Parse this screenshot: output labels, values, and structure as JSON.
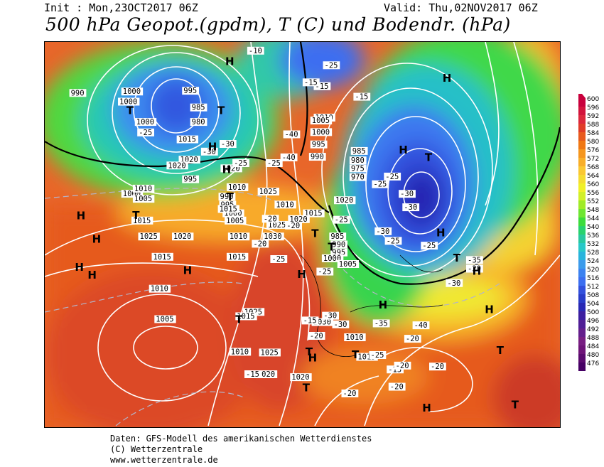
{
  "header": {
    "init": "Init : Mon,23OCT2017 06Z",
    "valid": "Valid: Thu,02NOV2017 06Z",
    "title": "500 hPa Geopot.(gpdm), T (C) und Bodendr. (hPa)"
  },
  "footer": {
    "line1": "Daten: GFS-Modell des amerikanischen Wetterdienstes",
    "line2": "(C) Wetterzentrale",
    "line3": "www.wetterzentrale.de"
  },
  "legend": {
    "levels": [
      "600",
      "596",
      "592",
      "588",
      "584",
      "580",
      "576",
      "572",
      "568",
      "564",
      "560",
      "556",
      "552",
      "548",
      "544",
      "540",
      "536",
      "532",
      "528",
      "524",
      "520",
      "516",
      "512",
      "508",
      "504",
      "500",
      "496",
      "492",
      "488",
      "484",
      "480",
      "476"
    ],
    "colors": [
      "#c8003c",
      "#d2143c",
      "#dc283c",
      "#e03c28",
      "#e85a1e",
      "#f07814",
      "#f5961e",
      "#f8ae28",
      "#fac832",
      "#f5dc32",
      "#f0f028",
      "#d2f028",
      "#a0eb28",
      "#6ee632",
      "#3cdc3c",
      "#28d26e",
      "#28c8a0",
      "#28c8c8",
      "#28b4dc",
      "#3c9beb",
      "#3c82f0",
      "#3c6ef0",
      "#3250dc",
      "#283cc8",
      "#2828b4",
      "#3c1ea0",
      "#501e96",
      "#641e8c",
      "#781e82",
      "#6e1478",
      "#5a0a6e",
      "#460064"
    ]
  },
  "map": {
    "pressure_labels": [
      "990",
      "995",
      "1000",
      "1000",
      "985",
      "980",
      "1000",
      "1010",
      "1010",
      "1005",
      "1000",
      "995",
      "990",
      "1020",
      "1015",
      "1020",
      "995",
      "1000",
      "1005",
      "1010",
      "1015",
      "1020",
      "1025",
      "1020",
      "990",
      "995",
      "1000",
      "1005",
      "1010",
      "1015",
      "1030",
      "1025",
      "1015",
      "1025",
      "1010",
      "985",
      "980",
      "975",
      "970",
      "985",
      "990",
      "995",
      "1000",
      "1005",
      "1015",
      "1020",
      "1025",
      "1020",
      "1015",
      "1010",
      "1005",
      "1015",
      "1030",
      "1025",
      "1020",
      "1020",
      "1010",
      "1010",
      "1015"
    ],
    "temp_labels": [
      "-25",
      "-30",
      "-30",
      "-25",
      "-40",
      "-40",
      "-25",
      "-25",
      "-30",
      "-30",
      "-25",
      "-25",
      "-30",
      "-25",
      "-20",
      "-20",
      "-20",
      "-25",
      "-25",
      "-30",
      "-30",
      "-25",
      "-20",
      "-20",
      "-20",
      "-20",
      "-15",
      "-15",
      "-15",
      "-15",
      "-15",
      "-10",
      "-15",
      "-20",
      "-20",
      "-20",
      "-25",
      "-40",
      "-35",
      "-35",
      "-30",
      "-25"
    ],
    "high_markers": [
      "H",
      "H",
      "H",
      "H",
      "H",
      "H",
      "H",
      "H",
      "H",
      "H",
      "H",
      "H",
      "H",
      "H",
      "H",
      "H",
      "H"
    ],
    "low_markers": [
      "T",
      "T",
      "T",
      "T",
      "T",
      "T",
      "T",
      "T",
      "T",
      "T",
      "T",
      "T",
      "T",
      "T"
    ]
  }
}
